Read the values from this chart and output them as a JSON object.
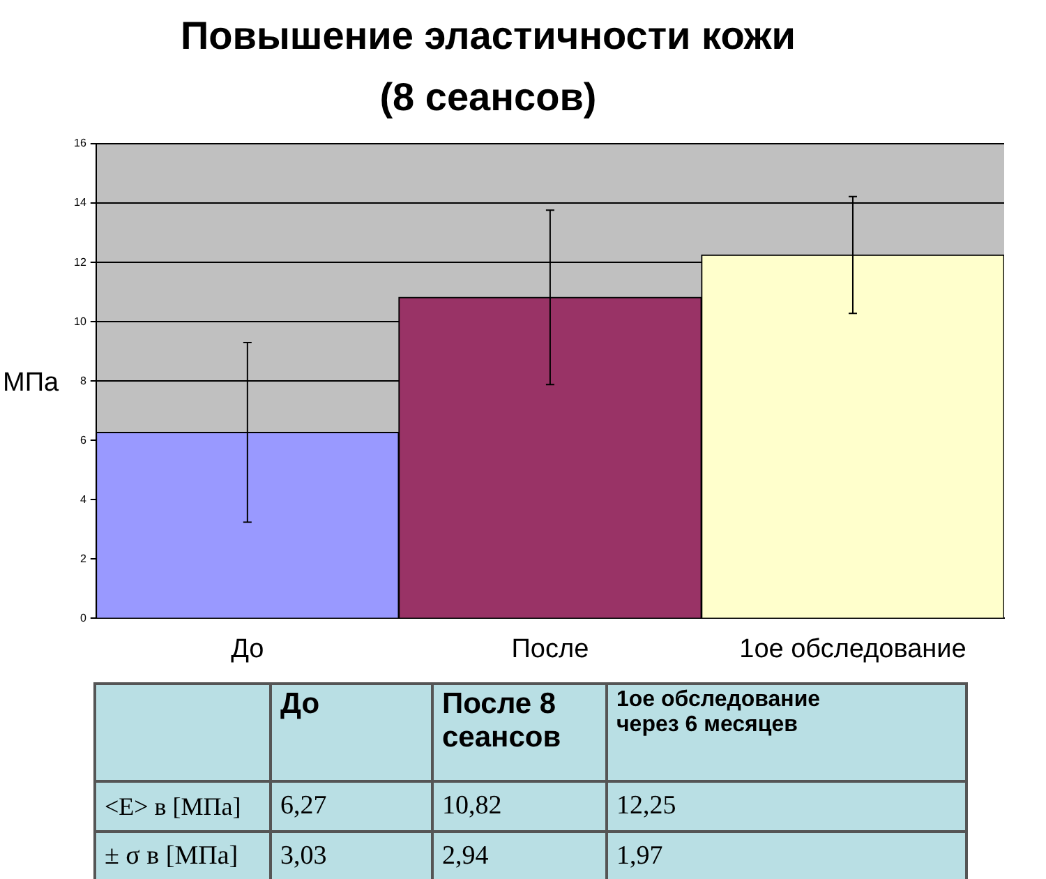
{
  "chart_data": {
    "type": "bar",
    "title": "Повышение эластичности кожи (8 сеансов)",
    "ylabel": "МПа",
    "categories": [
      "До",
      "После",
      "1ое обследование"
    ],
    "values": [
      6.27,
      10.82,
      12.25
    ],
    "colors": [
      "#9999ff",
      "#993366",
      "#ffffcc"
    ],
    "errors": [
      3.03,
      2.94,
      1.97
    ],
    "ylim": [
      0,
      16
    ],
    "yticks": [
      0,
      2,
      4,
      6,
      8,
      10,
      12,
      14,
      16
    ],
    "grid": "y",
    "legend": false,
    "annotations": [
      "До",
      "После 8 сеансов",
      "1ое обследование через 6 месяцев",
      "<E> в [МПа]",
      "± σ в [МПа]",
      "6,27",
      "10,82",
      "12,25",
      "3,03",
      "2,94",
      "1,97"
    ]
  }
}
